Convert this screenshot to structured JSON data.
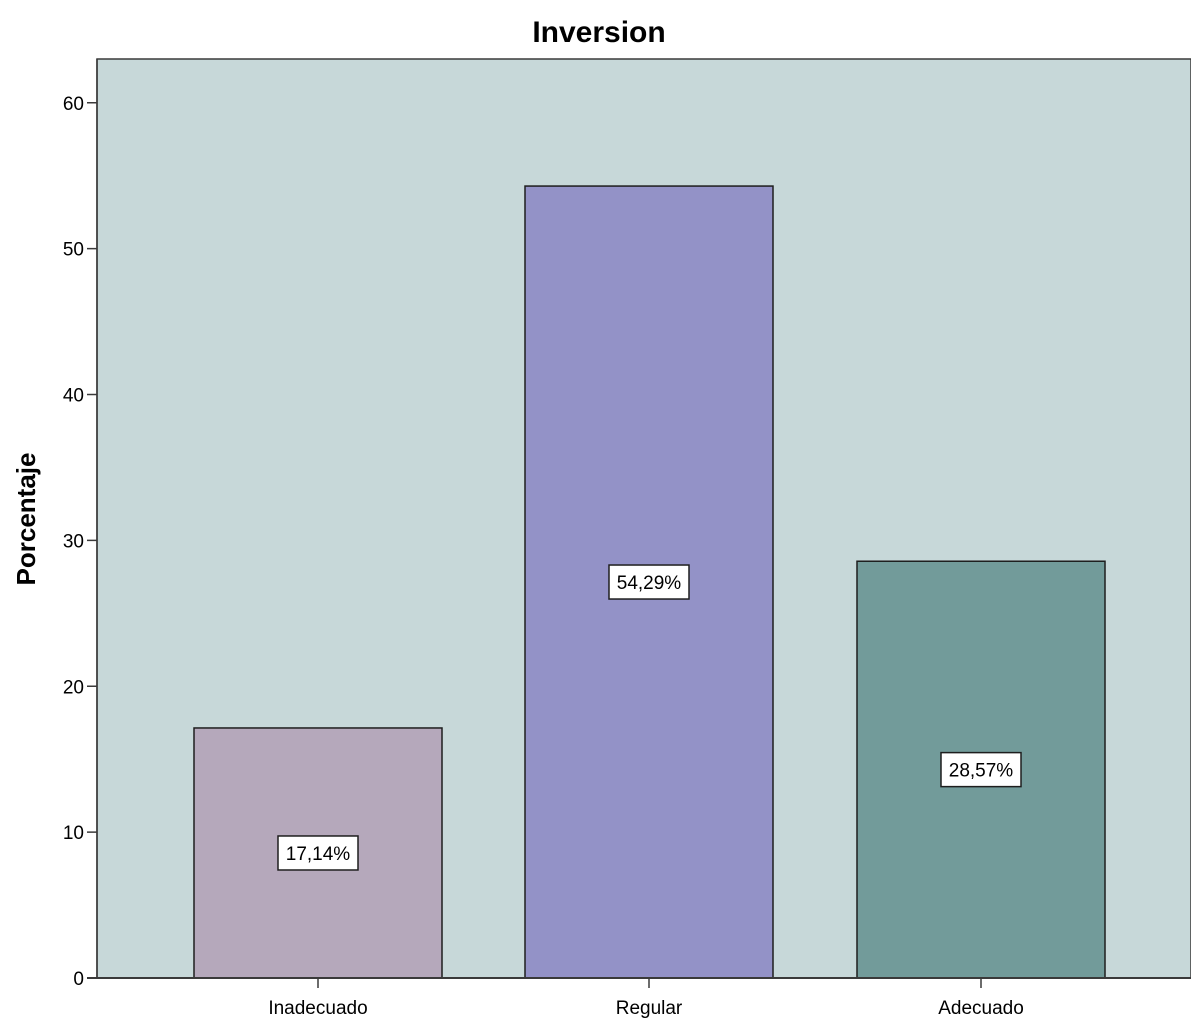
{
  "chart_data": {
    "type": "bar",
    "title": "Inversion",
    "xlabel": "",
    "ylabel": "Porcentaje",
    "categories": [
      "Inadecuado",
      "Regular",
      "Adecuado"
    ],
    "values": [
      17.14,
      54.29,
      28.57
    ],
    "data_labels": [
      "17,14%",
      "54,29%",
      "28,57%"
    ],
    "bar_colors": [
      "#b5a8bb",
      "#9392c7",
      "#729b9a"
    ],
    "plot_background": "#c7d8d9",
    "ylim": [
      0,
      63
    ],
    "yticks": [
      0,
      10,
      20,
      30,
      40,
      50,
      60
    ],
    "grid": false,
    "legend": "none"
  }
}
